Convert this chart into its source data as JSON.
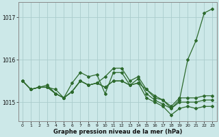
{
  "xlabel": "Graphe pression niveau de la mer (hPa)",
  "background_color": "#cce8e8",
  "grid_color": "#aacccc",
  "line_color": "#2d6a2d",
  "x": [
    0,
    1,
    2,
    3,
    4,
    5,
    6,
    7,
    8,
    9,
    10,
    11,
    12,
    13,
    14,
    15,
    16,
    17,
    18,
    19,
    20,
    21,
    22,
    23
  ],
  "series": [
    [
      1015.5,
      1015.3,
      1015.35,
      1015.35,
      1015.3,
      1015.1,
      1015.25,
      1015.5,
      1015.4,
      1015.45,
      1015.35,
      1015.5,
      1015.5,
      1015.4,
      1015.45,
      1015.3,
      1015.1,
      1015.05,
      1014.85,
      1015.0,
      1015.0,
      1015.0,
      1015.05,
      1015.05
    ],
    [
      1015.5,
      1015.3,
      1015.35,
      1015.4,
      1015.2,
      1015.1,
      1015.45,
      1015.7,
      1015.6,
      1015.65,
      1015.2,
      1015.7,
      1015.7,
      1015.4,
      1015.55,
      1015.2,
      1015.05,
      1014.95,
      1014.85,
      1015.05,
      1016.0,
      1016.45,
      1017.1,
      1017.2
    ],
    [
      1015.5,
      1015.3,
      1015.35,
      1015.35,
      1015.2,
      1015.1,
      1015.25,
      1015.5,
      1015.4,
      1015.45,
      1015.6,
      1015.8,
      1015.8,
      1015.5,
      1015.6,
      1015.3,
      1015.15,
      1015.05,
      1014.9,
      1015.1,
      1015.1,
      1015.1,
      1015.15,
      1015.15
    ],
    [
      1015.5,
      1015.3,
      1015.35,
      1015.35,
      1015.2,
      1015.1,
      1015.25,
      1015.5,
      1015.4,
      1015.45,
      1015.35,
      1015.5,
      1015.5,
      1015.4,
      1015.45,
      1015.1,
      1015.0,
      1014.9,
      1014.7,
      1014.85,
      1014.9,
      1014.85,
      1014.9,
      1014.9
    ]
  ],
  "ylim": [
    1014.55,
    1017.35
  ],
  "yticks": [
    1015.0,
    1016.0,
    1017.0
  ],
  "ytick_labels": [
    "1015",
    "1016",
    "1017"
  ],
  "xticks": [
    0,
    1,
    2,
    3,
    4,
    5,
    6,
    7,
    8,
    9,
    10,
    11,
    12,
    13,
    14,
    15,
    16,
    17,
    18,
    19,
    20,
    21,
    22,
    23
  ],
  "marker": "D",
  "marker_size": 2.0,
  "linewidth": 0.9
}
